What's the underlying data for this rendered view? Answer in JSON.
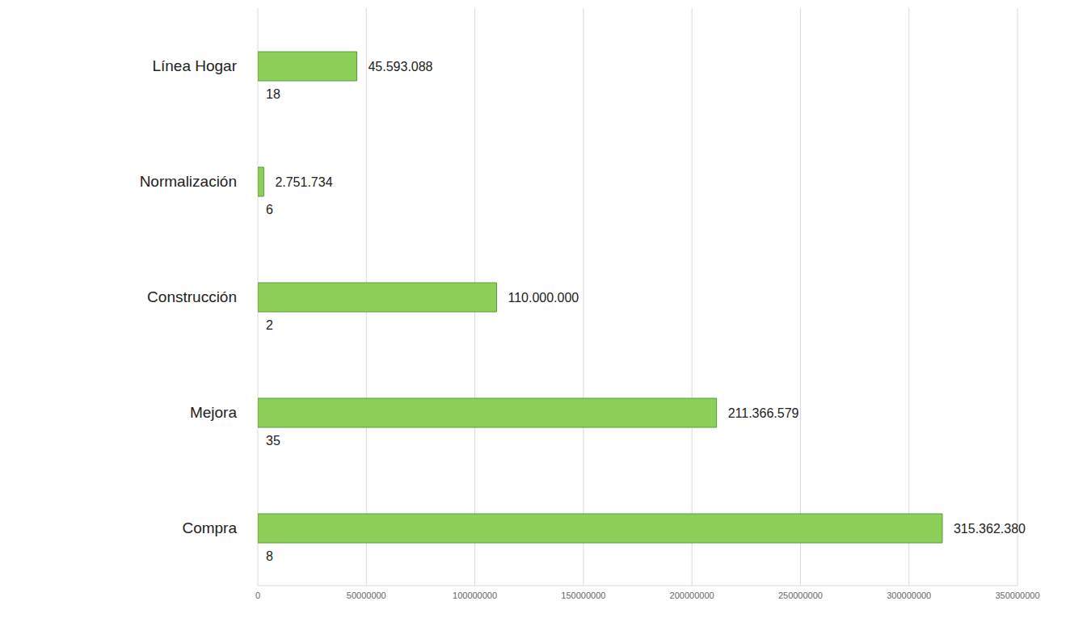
{
  "chart_data": {
    "type": "bar",
    "orientation": "horizontal",
    "categories": [
      "Línea Hogar",
      "Normalización",
      "Construcción",
      "Mejora",
      "Compra"
    ],
    "values": [
      45593088,
      2751734,
      110000000,
      211366579,
      315362380
    ],
    "value_labels": [
      "45.593.088",
      "2.751.734",
      "110.000.000",
      "211.366.579",
      "315.362.380"
    ],
    "counts": [
      18,
      6,
      2,
      35,
      8
    ],
    "color": "#8cd05a",
    "xlim": [
      0,
      350000000
    ],
    "xticks": [
      0,
      50000000,
      100000000,
      150000000,
      200000000,
      250000000,
      300000000,
      350000000
    ],
    "grid": true,
    "data_labels": true
  }
}
